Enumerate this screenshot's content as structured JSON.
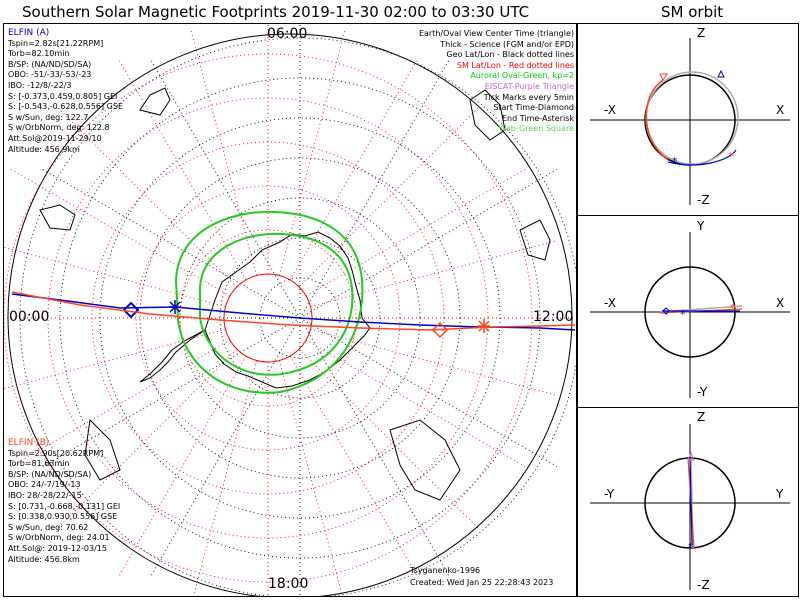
{
  "title": "Southern Solar Magnetic Footprints 2019-11-30 02:00 to 03:30 UTC",
  "orbit_title": "SM orbit",
  "clock_labels": {
    "top": "06:00",
    "left": "00:00",
    "right": "12:00",
    "bottom": "18:00"
  },
  "elfin_a": {
    "name": "ELFIN (A)",
    "lines": [
      "Tspin=2.82s[21.22RPM]",
      "Torb=82.10min",
      "B/SP: (NA/ND/SD/SA)",
      "OBO: -51/-33/-53/-23",
      "IBO: -12/8/-22/3",
      "S: [-0.373,0.459,0.805] GEI",
      "S: [-0.543,-0.628,0.556] GSE",
      "S w/Sun, deg: 122.7",
      "S w/OrbNorm, deg: 122.8",
      "Att.Sol@2019-11-29/10",
      "Altitude: 456.9km"
    ],
    "color": "#0000cc"
  },
  "elfin_b": {
    "name": "ELFIN (B)",
    "lines": [
      "Tspin=2.90s[20.62RPM]",
      "Torb=81.63min",
      "B/SP: (NA/ND/SD/SA)",
      "OBO: 24/-7/19/-13",
      "IBO: 28/-28/22/-15",
      "S: [0.731,-0.668,-0.131] GEI",
      "S: [0.338,0.930,0.556] GSE",
      "S w/Sun, deg: 70.62",
      "S w/OrbNorm, deg: 24.01",
      "Att.Sol@: 2019-12-03/15",
      "Altitude: 456.8km"
    ],
    "color": "#ff4422"
  },
  "legend": [
    {
      "text": "Earth/Oval View Center Time (triangle)",
      "color": "#000000"
    },
    {
      "text": "Thick - Science (FGM and/or EPD)",
      "color": "#000000"
    },
    {
      "text": "Geo Lat/Lon - Black dotted lines",
      "color": "#000000"
    },
    {
      "text": "SM Lat/Lon - Red dotted lines",
      "color": "#ff0000"
    },
    {
      "text": "Auroral Oval-Green, kp=2",
      "color": "#00cc00"
    },
    {
      "text": "EISCAT-Purple Triangle",
      "color": "#cc66cc"
    },
    {
      "text": "Tick Marks every 5min",
      "color": "#000000"
    },
    {
      "text": "Start Time-Diamond",
      "color": "#000000"
    },
    {
      "text": "End Time-Asterisk",
      "color": "#000000"
    },
    {
      "text": "Wab-Green Square",
      "color": "#66cc66"
    }
  ],
  "credit": "Tsyganenko-1996",
  "created": "Created: Wed Jan 25 22:28:43 2023",
  "panels": [
    {
      "top": "Z",
      "bottom": "-Z",
      "left": "-X",
      "right": "X"
    },
    {
      "top": "Y",
      "bottom": "-Y",
      "left": "-X",
      "right": "X"
    },
    {
      "top": "Z",
      "bottom": "-Z",
      "left": "-Y",
      "right": "Y"
    }
  ]
}
